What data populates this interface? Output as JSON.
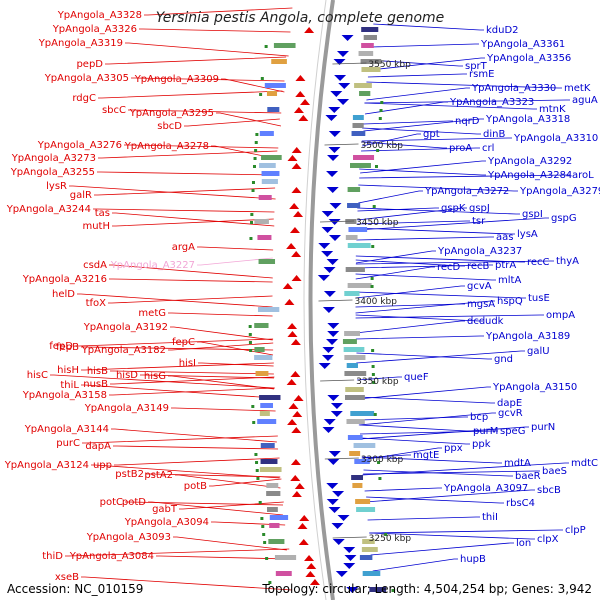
{
  "title": "Yersinia pestis Angola, complete genome",
  "accession": "Accession: NC_010159",
  "topology": "Topology: circular; Length: 4,504,254 bp; Genes: 3,942",
  "colors": {
    "left": "#e00000",
    "right": "#0000d0",
    "faded": "#f2a6d6",
    "axis": "#999999"
  },
  "kbp_labels": [
    "3550 kbp",
    "3500 kbp",
    "3450 kbp",
    "3400 kbp",
    "3350 kbp",
    "3300 kbp",
    "3250 kbp"
  ],
  "left_labels": [
    "YpAngola_A3328",
    "YpAngola_A3326",
    "YpAngola_A3319",
    "pepD",
    "YpAngola_A3305",
    "YpAngola_A3309",
    "rdgC",
    "sbcC",
    "YpAngola_A3295",
    "sbcD",
    "YpAngola_A3276",
    "YpAngola_A3278",
    "YpAngola_A3273",
    "YpAngola_A3255",
    "lysR",
    "galR",
    "YpAngola_A3244",
    "tas",
    "mutH",
    "argA",
    "csdA",
    "YpAngola_A3227",
    "YpAngola_A3216",
    "helD",
    "tfoX",
    "metG",
    "YpAngola_A3192",
    "fepD",
    "fepB",
    "fepC",
    "YpAngola_A3182",
    "hisI",
    "hisC",
    "hisH",
    "hisB",
    "thiL",
    "nusB",
    "hisD",
    "hisG",
    "YpAngola_A3158",
    "YpAngola_A3149",
    "YpAngola_A3144",
    "purC",
    "dapA",
    "YpAngola_A3124",
    "upp",
    "pstB2",
    "pstA2",
    "potB",
    "potC",
    "potD",
    "gabT",
    "YpAngola_A3094",
    "YpAngola_A3093",
    "thiD",
    "YpAngola_A3084",
    "xseB"
  ],
  "right_labels": [
    "kduD2",
    "YpAngola_A3361",
    "YpAngola_A3356",
    "sprT",
    "rsmE",
    "YpAngola_A3330",
    "metK",
    "aguA",
    "YpAngola_A3323",
    "mtnK",
    "nqrD",
    "YpAngola_A3318",
    "dinB",
    "YpAngola_A3310",
    "gpt",
    "proA",
    "crl",
    "YpAngola_A3292",
    "YpAngola_A3284",
    "aroL",
    "YpAngola_A3272",
    "YpAngola_A3279",
    "gspK",
    "gspJ",
    "gspI",
    "tsr",
    "gspG",
    "lysA",
    "aas",
    "YpAngola_A3237",
    "recC",
    "thyA",
    "recD",
    "recB",
    "ptrA",
    "gcvA",
    "mltA",
    "mgsA",
    "hspQ",
    "tusE",
    "ompA",
    "dcd",
    "udk",
    "YpAngola_A3189",
    "galU",
    "gnd",
    "queF",
    "YpAngola_A3150",
    "dapE",
    "bcp",
    "gcvR",
    "purM",
    "speG",
    "purN",
    "ppk",
    "mgtE",
    "ppx",
    "mdtA",
    "baeS",
    "mdtC",
    "baeR",
    "YpAngola_A3097",
    "sbcB",
    "rbsC4",
    "thiI",
    "lon",
    "clpX",
    "clpP",
    "hupB"
  ]
}
